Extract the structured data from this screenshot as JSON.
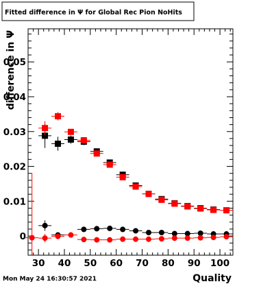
{
  "chart_data": {
    "type": "scatter",
    "title": "Fitted difference in  Ψ  for Global Rec Pion NoHits",
    "xlabel": "Quality",
    "ylabel": "difference in  Ψ",
    "timestamp": "Mon May 24 16:30:57 2021",
    "xlim": [
      26,
      105
    ],
    "ylim": [
      -0.0055,
      0.0595
    ],
    "x_ticks": [
      30,
      40,
      50,
      60,
      70,
      80,
      90,
      100
    ],
    "y_ticks": [
      0,
      0.01,
      0.02,
      0.03,
      0.04,
      0.05
    ],
    "x_tick_labels": [
      "30",
      "40",
      "50",
      "60",
      "70",
      "80",
      "90",
      "100"
    ],
    "y_tick_labels": [
      "0",
      "0.01",
      "0.02",
      "0.03",
      "0.04",
      "0.05"
    ],
    "grid": false,
    "legend": "none",
    "x": [
      27.5,
      32.5,
      37.5,
      42.5,
      47.5,
      52.5,
      57.5,
      62.5,
      67.5,
      72.5,
      77.5,
      82.5,
      87.5,
      92.5,
      97.5,
      102.5
    ],
    "x_err": 2.5,
    "series": [
      {
        "marker": "square",
        "color": "#000000",
        "values": [
          null,
          0.0288,
          0.0265,
          0.0277,
          0.0271,
          0.0243,
          0.0211,
          0.0176,
          0.0145,
          0.0121,
          0.0106,
          0.0094,
          0.0086,
          0.008,
          0.0076,
          0.0074
        ],
        "errors": [
          null,
          0.0035,
          0.002,
          0.0012,
          0.001,
          0.0008,
          0.0006,
          0.0005,
          0.0005,
          0.0004,
          0.0004,
          0.0004,
          0.0004,
          0.0004,
          0.0004,
          0.0004
        ]
      },
      {
        "marker": "square",
        "color": "#ff0000",
        "values": [
          null,
          0.031,
          0.0344,
          0.0299,
          0.0275,
          0.0237,
          0.0205,
          0.0169,
          0.0142,
          0.0121,
          0.0104,
          0.0093,
          0.0085,
          0.0079,
          0.0075,
          0.0074
        ],
        "errors": [
          null,
          0.002,
          0.0012,
          0.0008,
          0.0008,
          0.0006,
          0.0005,
          0.0004,
          0.0004,
          0.0004,
          0.0004,
          0.0003,
          0.0003,
          0.0003,
          0.0003,
          0.0003
        ]
      },
      {
        "marker": "circle",
        "color": "#000000",
        "values": [
          null,
          0.003,
          0.0003,
          null,
          0.0019,
          0.0021,
          0.0022,
          0.0019,
          0.0015,
          0.001,
          0.001,
          0.0007,
          0.0007,
          0.0008,
          0.0006,
          0.0006
        ],
        "errors": [
          null,
          0.0015,
          0.0008,
          null,
          0.0005,
          0.0004,
          0.0004,
          0.0003,
          0.0003,
          0.0003,
          0.0003,
          0.0003,
          0.0003,
          0.0003,
          0.0003,
          0.0003
        ]
      },
      {
        "marker": "circle",
        "color": "#ff0000",
        "values": [
          -0.0005,
          -0.0006,
          -0.0001,
          0.0003,
          -0.001,
          -0.0011,
          -0.0011,
          -0.0009,
          -0.0009,
          -0.0009,
          -0.0008,
          -0.0006,
          -0.0006,
          -0.0005,
          -0.0004,
          -0.0002
        ],
        "errors": [
          0.0186,
          0.0012,
          0.0006,
          0.0004,
          0.0004,
          0.0003,
          0.0003,
          0.0003,
          0.0003,
          0.0003,
          0.0003,
          0.0003,
          0.0003,
          0.0003,
          0.0003,
          0.0003
        ]
      }
    ]
  }
}
